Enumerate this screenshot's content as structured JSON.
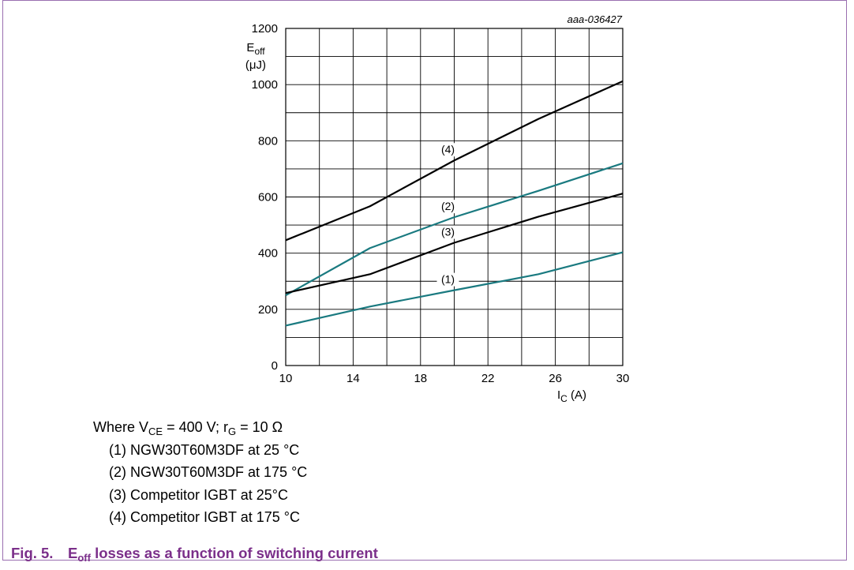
{
  "figure_id": "aaa-036427",
  "caption": {
    "number": "Fig. 5.",
    "symbol": "E",
    "symbol_sub": "off",
    "text": " losses as a function of switching current"
  },
  "conditions": {
    "lead": "Where V",
    "v_sub": "CE",
    "v_value": " = 400 V; r",
    "r_sub": "G",
    "r_value": " = 10 Ω"
  },
  "legend": [
    "(1) NGW30T60M3DF at 25 °C",
    "(2) NGW30T60M3DF at 175 °C",
    "(3) Competitor IGBT at 25°C",
    "(4) Competitor IGBT at 175 °C"
  ],
  "colors": {
    "teal": "#1a7a80",
    "black": "#000000",
    "caption": "#7b2f8a",
    "frame": "#9a6fb0"
  },
  "chart_data": {
    "type": "line",
    "title": "",
    "xlabel": {
      "symbol": "I",
      "sub": "C",
      "unit": " (A)"
    },
    "ylabel": {
      "symbol": "E",
      "sub": "off",
      "unit": "(μJ)"
    },
    "xlim": [
      10,
      30
    ],
    "ylim": [
      0,
      1200
    ],
    "x_ticks": [
      10,
      14,
      18,
      22,
      26,
      30
    ],
    "y_ticks": [
      0,
      200,
      400,
      600,
      800,
      1000,
      1200
    ],
    "grid": true,
    "series": [
      {
        "label": "(1)",
        "color": "teal",
        "label_at": 20,
        "x": [
          10,
          15,
          20,
          25,
          30
        ],
        "y": [
          142,
          210,
          268,
          325,
          403
        ]
      },
      {
        "label": "(2)",
        "color": "teal",
        "label_at": 20,
        "x": [
          10,
          15,
          20,
          25,
          30
        ],
        "y": [
          250,
          418,
          528,
          622,
          720
        ]
      },
      {
        "label": "(3)",
        "color": "black",
        "label_at": 20,
        "x": [
          10,
          15,
          20,
          25,
          30
        ],
        "y": [
          258,
          325,
          437,
          530,
          612
        ]
      },
      {
        "label": "(4)",
        "color": "black",
        "label_at": 20,
        "x": [
          10,
          15,
          20,
          25,
          30
        ],
        "y": [
          446,
          567,
          730,
          878,
          1012
        ]
      }
    ]
  }
}
